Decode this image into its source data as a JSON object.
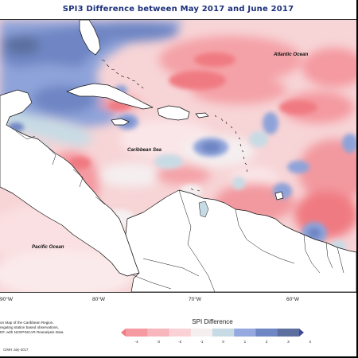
{
  "title": "SPI3 Difference between May 2017 and June 2017",
  "labels": {
    "atlantic": "Atlantic Ocean",
    "caribbean": "Caribbean Sea",
    "pacific": "Pacific Ocean"
  },
  "longitudes": [
    "90°W",
    "80°W",
    "70°W",
    "60°W"
  ],
  "footnote": [
    "on Map of the Caribbean Region.",
    "regating station based observations,",
    "DF, with NCEPINCAR Reanalysis Data."
  ],
  "credit": "CIMH July-2017",
  "legend": {
    "title": "SPI Difference",
    "ticks": [
      "-4",
      "-3",
      "-2",
      "-1",
      "0",
      "1",
      "2",
      "3",
      "4"
    ],
    "colors": [
      "#f07a82",
      "#f49aa0",
      "#f7b6bb",
      "#fad2d5",
      "#f5eff0",
      "#c7dbe5",
      "#95a8e0",
      "#6f86c4",
      "#5c6f9f",
      "#3f4a96"
    ]
  }
}
